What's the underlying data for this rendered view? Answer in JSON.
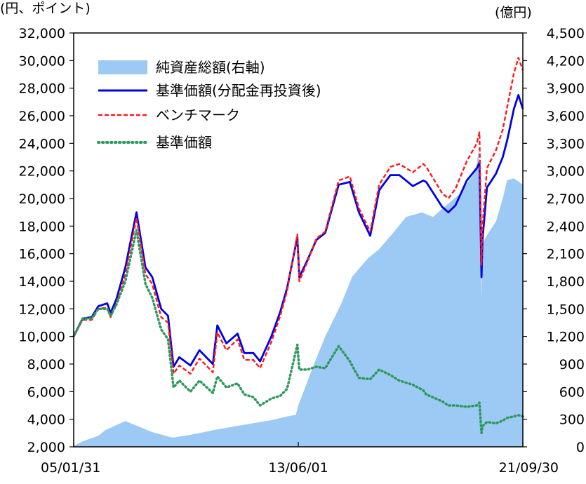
{
  "chart_data": {
    "type": "line",
    "left_axis": {
      "unit_label": "(円、ポイント)",
      "ylim": [
        2000,
        32000
      ],
      "ticks": [
        2000,
        4000,
        6000,
        8000,
        10000,
        12000,
        14000,
        16000,
        18000,
        20000,
        22000,
        24000,
        26000,
        28000,
        30000,
        32000
      ],
      "tick_labels": [
        "2,000",
        "4,000",
        "6,000",
        "8,000",
        "10,000",
        "12,000",
        "14,000",
        "16,000",
        "18,000",
        "20,000",
        "22,000",
        "24,000",
        "26,000",
        "28,000",
        "30,000",
        "32,000"
      ]
    },
    "right_axis": {
      "unit_label": "(億円)",
      "ylim": [
        0,
        4500
      ],
      "ticks": [
        0,
        300,
        600,
        900,
        1200,
        1500,
        1800,
        2100,
        2400,
        2700,
        3000,
        3300,
        3600,
        3900,
        4200,
        4500
      ],
      "tick_labels": [
        "0",
        "300",
        "600",
        "900",
        "1,200",
        "1,500",
        "1,800",
        "2,100",
        "2,400",
        "2,700",
        "3,000",
        "3,300",
        "3,600",
        "3,900",
        "4,200",
        "4,500"
      ]
    },
    "x_axis": {
      "range": [
        "2005-01-31",
        "2021-09-30"
      ],
      "tick_labels": [
        "05/01/31",
        "13/06/01",
        "21/09/30"
      ],
      "tick_dates": [
        "2005-01-31",
        "2013-06-01",
        "2021-09-30"
      ]
    },
    "legend": {
      "placement": "top-left",
      "entries": [
        "純資産総額(右軸)",
        "基準価額(分配金再投資後)",
        "ベンチマーク",
        "基準価額"
      ]
    },
    "grid": false,
    "series": [
      {
        "name": "純資産総額(右軸)",
        "axis": "right",
        "style": "area",
        "color": "#9dc9f5",
        "x": [
          "2005-01-31",
          "2005-06-01",
          "2006-01-01",
          "2006-04-01",
          "2007-01-01",
          "2008-01-01",
          "2008-10-01",
          "2009-06-01",
          "2010-06-01",
          "2011-06-01",
          "2012-06-01",
          "2013-01-01",
          "2013-05-01",
          "2013-06-01",
          "2014-01-01",
          "2014-06-01",
          "2015-01-01",
          "2015-06-01",
          "2016-01-01",
          "2016-06-01",
          "2017-01-01",
          "2017-06-01",
          "2018-01-01",
          "2018-06-01",
          "2019-01-01",
          "2019-06-01",
          "2020-01-01",
          "2020-02-15",
          "2020-03-19",
          "2020-03-25",
          "2020-06-01",
          "2020-10-01",
          "2021-01-01",
          "2021-03-01",
          "2021-06-01",
          "2021-09-30"
        ],
        "values": [
          10,
          60,
          120,
          180,
          280,
          160,
          100,
          130,
          190,
          240,
          290,
          330,
          350,
          450,
          900,
          1200,
          1550,
          1850,
          2050,
          2150,
          2350,
          2500,
          2550,
          2500,
          2650,
          2750,
          3000,
          3250,
          1600,
          2200,
          2300,
          2450,
          2700,
          2900,
          2920,
          2850
        ]
      },
      {
        "name": "基準価額(分配金再投資後)",
        "axis": "left",
        "style": "solid",
        "color": "#0000e6",
        "x": [
          "2005-01-31",
          "2005-06-01",
          "2005-10-01",
          "2006-01-01",
          "2006-05-01",
          "2006-06-15",
          "2006-09-01",
          "2007-01-01",
          "2007-06-01",
          "2007-10-01",
          "2008-01-01",
          "2008-05-01",
          "2008-08-01",
          "2008-10-15",
          "2009-01-01",
          "2009-06-01",
          "2009-10-01",
          "2010-04-01",
          "2010-06-01",
          "2010-10-01",
          "2011-03-01",
          "2011-06-01",
          "2011-10-01",
          "2012-01-01",
          "2012-06-01",
          "2012-10-01",
          "2013-01-01",
          "2013-05-20",
          "2013-06-15",
          "2013-10-01",
          "2014-02-01",
          "2014-06-01",
          "2014-12-01",
          "2015-05-01",
          "2015-09-01",
          "2016-02-01",
          "2016-06-01",
          "2016-11-01",
          "2017-03-01",
          "2017-09-01",
          "2018-01-20",
          "2018-03-01",
          "2018-10-01",
          "2018-12-25",
          "2019-04-01",
          "2019-09-01",
          "2020-01-15",
          "2020-02-20",
          "2020-03-19",
          "2020-04-01",
          "2020-06-01",
          "2020-10-01",
          "2021-01-01",
          "2021-03-01",
          "2021-06-01",
          "2021-08-01",
          "2021-09-30"
        ],
        "values": [
          10000,
          11300,
          11400,
          12200,
          12400,
          11700,
          12700,
          15000,
          19000,
          15000,
          14300,
          12000,
          11500,
          7800,
          8500,
          7900,
          9000,
          8000,
          10800,
          9500,
          10200,
          8800,
          8800,
          8200,
          10000,
          11800,
          13500,
          17200,
          14300,
          15500,
          17000,
          17500,
          21000,
          21200,
          19000,
          17300,
          20600,
          21700,
          21700,
          20900,
          21300,
          21200,
          19400,
          19000,
          19500,
          21300,
          22200,
          22600,
          14300,
          17000,
          20800,
          21800,
          23000,
          24200,
          26500,
          27500,
          26500
        ]
      },
      {
        "name": "ベンチマーク",
        "axis": "left",
        "style": "dashed",
        "color": "#ff1a1a",
        "x": [
          "2005-01-31",
          "2005-06-01",
          "2005-10-01",
          "2006-01-01",
          "2006-05-01",
          "2006-06-15",
          "2006-09-01",
          "2007-01-01",
          "2007-06-01",
          "2007-10-01",
          "2008-01-01",
          "2008-05-01",
          "2008-08-01",
          "2008-10-15",
          "2009-01-01",
          "2009-06-01",
          "2009-10-01",
          "2010-04-01",
          "2010-06-01",
          "2010-10-01",
          "2011-03-01",
          "2011-06-01",
          "2011-10-01",
          "2012-01-01",
          "2012-06-01",
          "2012-10-01",
          "2013-01-01",
          "2013-05-20",
          "2013-06-15",
          "2013-10-01",
          "2014-02-01",
          "2014-06-01",
          "2014-12-01",
          "2015-05-01",
          "2015-09-01",
          "2016-02-01",
          "2016-06-01",
          "2016-11-01",
          "2017-03-01",
          "2017-09-01",
          "2018-01-20",
          "2018-03-01",
          "2018-10-01",
          "2018-12-25",
          "2019-04-01",
          "2019-09-01",
          "2020-01-15",
          "2020-02-20",
          "2020-03-19",
          "2020-04-01",
          "2020-06-01",
          "2020-10-01",
          "2021-01-01",
          "2021-03-01",
          "2021-06-01",
          "2021-08-01",
          "2021-09-30"
        ],
        "values": [
          10000,
          11200,
          11200,
          12000,
          12100,
          11400,
          12400,
          14500,
          18600,
          14500,
          13800,
          11400,
          11000,
          7300,
          7900,
          7300,
          8400,
          7400,
          10300,
          9000,
          9800,
          8300,
          8300,
          7700,
          9600,
          11500,
          13300,
          17400,
          14000,
          15400,
          17100,
          17600,
          21300,
          21600,
          19300,
          17600,
          21000,
          22300,
          22500,
          21900,
          22500,
          22300,
          20400,
          20000,
          20700,
          22700,
          24000,
          24800,
          15200,
          18000,
          22200,
          23500,
          25000,
          26600,
          29100,
          30200,
          29300
        ]
      },
      {
        "name": "基準価額",
        "axis": "left",
        "style": "dotted",
        "color": "#2e9a5e",
        "x": [
          "2005-01-31",
          "2005-06-01",
          "2005-10-01",
          "2006-01-01",
          "2006-05-01",
          "2006-06-15",
          "2006-09-01",
          "2007-01-01",
          "2007-06-01",
          "2007-10-01",
          "2008-01-01",
          "2008-05-01",
          "2008-08-01",
          "2008-10-15",
          "2009-01-01",
          "2009-06-01",
          "2009-10-01",
          "2010-04-01",
          "2010-06-01",
          "2010-10-01",
          "2011-03-01",
          "2011-06-01",
          "2011-10-01",
          "2012-01-01",
          "2012-06-01",
          "2012-10-01",
          "2013-01-01",
          "2013-05-20",
          "2013-06-15",
          "2013-10-01",
          "2014-02-01",
          "2014-06-01",
          "2014-12-01",
          "2015-05-01",
          "2015-09-01",
          "2016-02-01",
          "2016-06-01",
          "2016-11-01",
          "2017-03-01",
          "2017-09-01",
          "2018-01-20",
          "2018-03-01",
          "2018-10-01",
          "2018-12-25",
          "2019-04-01",
          "2019-09-01",
          "2020-01-15",
          "2020-02-20",
          "2020-03-19",
          "2020-04-01",
          "2020-06-01",
          "2020-10-01",
          "2021-01-01",
          "2021-03-01",
          "2021-06-01",
          "2021-08-01",
          "2021-09-30"
        ],
        "values": [
          10000,
          11300,
          11300,
          12000,
          12000,
          11500,
          12300,
          14000,
          17700,
          13800,
          12800,
          10500,
          9800,
          6300,
          6800,
          6000,
          6800,
          5900,
          7100,
          6300,
          6600,
          5800,
          5600,
          5000,
          5500,
          5700,
          6200,
          9400,
          7600,
          7600,
          7800,
          7700,
          9300,
          8200,
          7000,
          6900,
          7600,
          7200,
          6800,
          6500,
          6100,
          5800,
          5300,
          5000,
          5000,
          4900,
          5000,
          5200,
          3000,
          3500,
          3800,
          3700,
          3900,
          4100,
          4200,
          4300,
          4200
        ]
      }
    ]
  }
}
